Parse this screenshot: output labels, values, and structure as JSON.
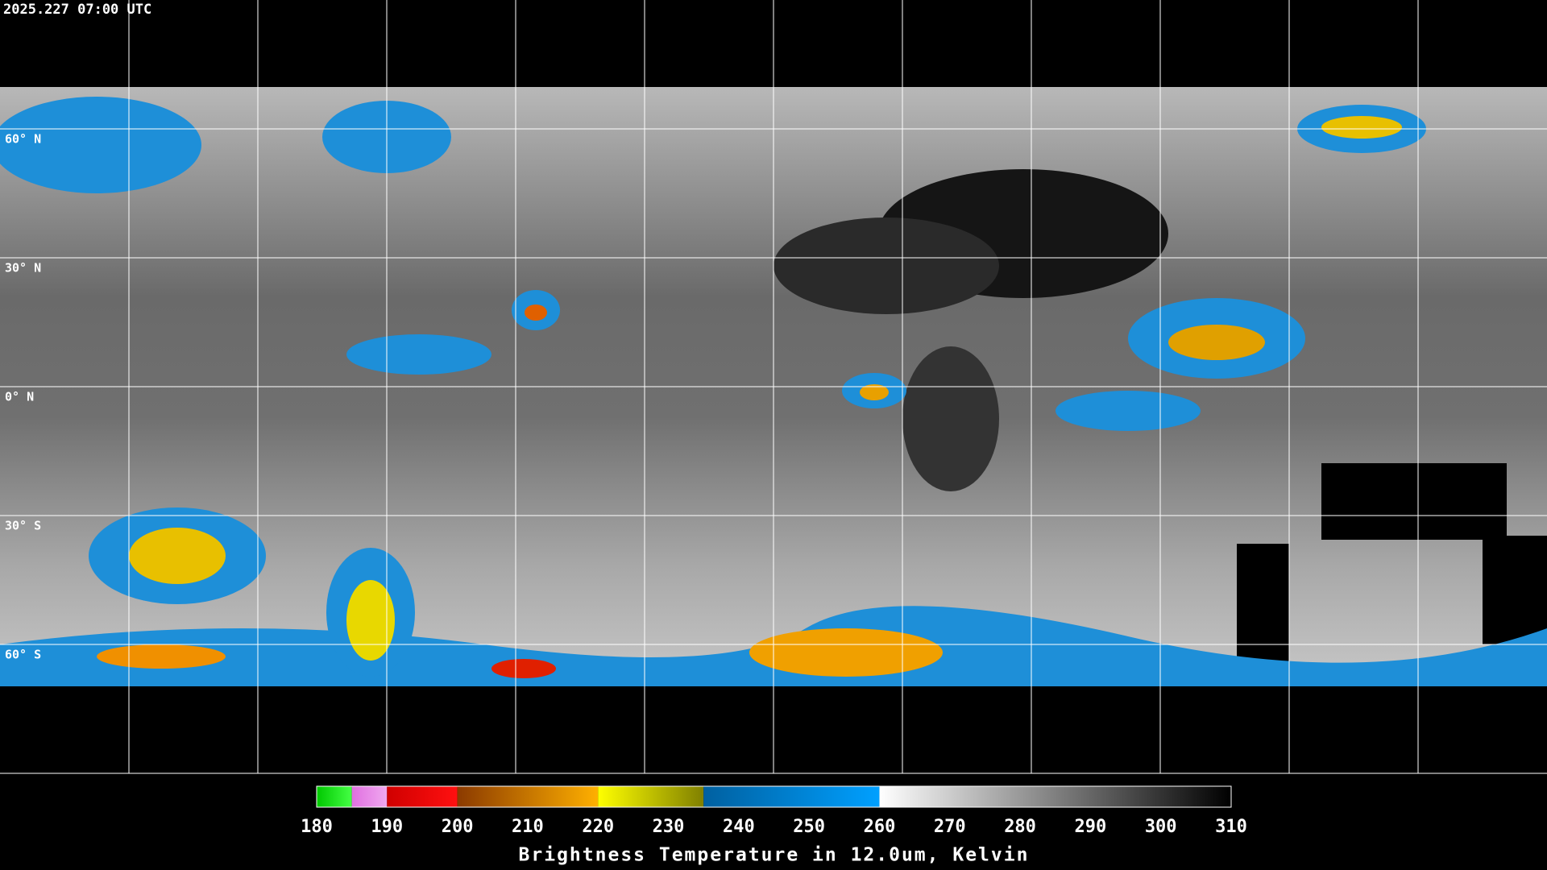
{
  "header": {
    "title": "2025.227 07:00 UTC"
  },
  "map": {
    "xlim": [
      -180,
      180
    ],
    "ylim": [
      -90,
      90
    ],
    "lon_grid": [
      -150,
      -120,
      -90,
      -60,
      -30,
      0,
      30,
      60,
      90,
      120,
      150
    ],
    "lat_grid": [
      {
        "value": 60,
        "label": "60° N"
      },
      {
        "value": 30,
        "label": "30° N"
      },
      {
        "value": 0,
        "label": "0° N"
      },
      {
        "value": -30,
        "label": "30° S"
      },
      {
        "value": -60,
        "label": "60° S"
      }
    ]
  },
  "colorbar": {
    "range": [
      180,
      310
    ],
    "ticks": [
      180,
      190,
      200,
      210,
      220,
      230,
      240,
      250,
      260,
      270,
      280,
      290,
      300,
      310
    ],
    "label": "Brightness Temperature in 12.0um, Kelvin",
    "segments": [
      {
        "from": 180,
        "to": 185,
        "colors": [
          "#00c800",
          "#44ff44"
        ]
      },
      {
        "from": 185,
        "to": 190,
        "colors": [
          "#e070e0",
          "#f0a8f0"
        ]
      },
      {
        "from": 190,
        "to": 200,
        "colors": [
          "#d00000",
          "#ff1010"
        ]
      },
      {
        "from": 200,
        "to": 220,
        "colors": [
          "#8b3a00",
          "#ffb000"
        ]
      },
      {
        "from": 220,
        "to": 235,
        "colors": [
          "#ffff00",
          "#808000"
        ]
      },
      {
        "from": 235,
        "to": 260,
        "colors": [
          "#0060a0",
          "#00a0ff"
        ]
      },
      {
        "from": 260,
        "to": 310,
        "colors": [
          "#ffffff",
          "#000000"
        ]
      }
    ]
  }
}
